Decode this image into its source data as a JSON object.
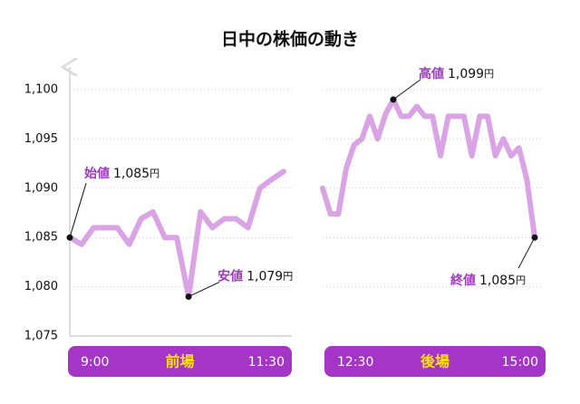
{
  "chart_data": {
    "type": "line",
    "title": "日中の株価の動き",
    "ylim": [
      1075,
      1102
    ],
    "yticks": [
      {
        "value": 1075,
        "label": "1,075"
      },
      {
        "value": 1080,
        "label": "1,080"
      },
      {
        "value": 1085,
        "label": "1,085"
      },
      {
        "value": 1090,
        "label": "1,090"
      },
      {
        "value": 1095,
        "label": "1,095"
      },
      {
        "value": 1100,
        "label": "1,100"
      }
    ],
    "grid": true,
    "color": "#d9a3e6",
    "panels": [
      {
        "name": "前場",
        "start": "9:00",
        "end": "11:30",
        "values": [
          1085,
          1084.3,
          1086,
          1086,
          1086,
          1084.3,
          1086.9,
          1087.6,
          1085,
          1085,
          1079,
          1087.6,
          1086,
          1086.9,
          1086.9,
          1086,
          1090,
          1090.9,
          1091.7
        ]
      },
      {
        "name": "後場",
        "start": "12:30",
        "end": "15:00",
        "values": [
          1090,
          1087.4,
          1087.4,
          1092,
          1094.4,
          1095,
          1097.3,
          1095,
          1097.5,
          1099,
          1097.3,
          1097.3,
          1098.3,
          1097.3,
          1097.3,
          1093.3,
          1097.3,
          1097.3,
          1097.3,
          1093.3,
          1097.3,
          1097.3,
          1093.3,
          1095,
          1093.3,
          1094.1,
          1090.9,
          1085
        ]
      }
    ],
    "annotations": [
      {
        "label": "始値",
        "value": "1,085",
        "unit": "円",
        "panel": 0,
        "index": 0
      },
      {
        "label": "安値",
        "value": "1,079",
        "unit": "円",
        "panel": 0,
        "index": 10
      },
      {
        "label": "高値",
        "value": "1,099",
        "unit": "円",
        "panel": 1,
        "index": 9
      },
      {
        "label": "終値",
        "value": "1,085",
        "unit": "円",
        "panel": 1,
        "index": 27
      }
    ]
  }
}
